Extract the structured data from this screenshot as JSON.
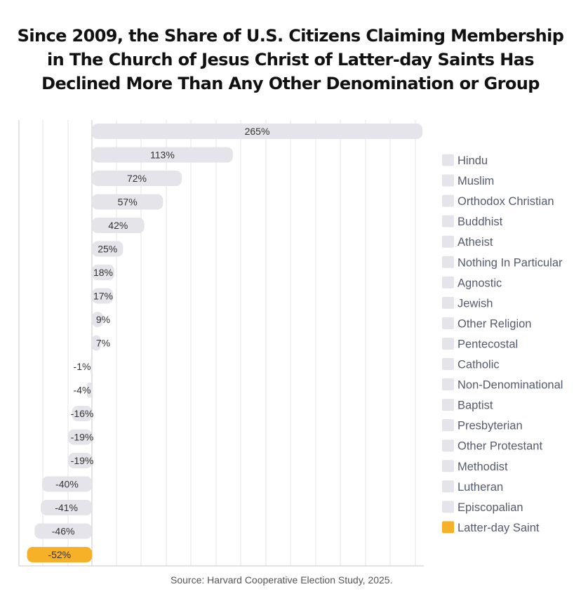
{
  "chart_data": {
    "type": "bar",
    "orientation": "horizontal",
    "title_lines": [
      "Since 2009, the Share of U.S. Citizens Claiming Membership",
      "in The Church of Jesus Christ of Latter-day Saints Has",
      "Declined More Than Any Other Denomination or Group"
    ],
    "categories": [
      "Hindu",
      "Muslim",
      "Orthodox Christian",
      "Buddhist",
      "Atheist",
      "Nothing In Particular",
      "Agnostic",
      "Jewish",
      "Other Religion",
      "Pentecostal",
      "Catholic",
      "Non-Denominational",
      "Baptist",
      "Presbyterian",
      "Other Protestant",
      "Methodist",
      "Lutheran",
      "Episcopalian",
      "Latter-day Saint"
    ],
    "values": [
      265,
      113,
      72,
      57,
      42,
      25,
      18,
      17,
      9,
      7,
      -1,
      -4,
      -16,
      -19,
      -19,
      -40,
      -41,
      -46,
      -52
    ],
    "value_labels": [
      "265%",
      "113%",
      "72%",
      "57%",
      "42%",
      "25%",
      "18%",
      "17%",
      "9%",
      "7%",
      "-1%",
      "-4%",
      "-16%",
      "-19%",
      "-19%",
      "-40%",
      "-41%",
      "-46%",
      "-52%"
    ],
    "highlight_category": "Latter-day Saint",
    "xlim": [
      -57,
      265
    ],
    "grid": true,
    "legend_position": "right",
    "source": "Source:  Harvard Cooperative Election Study, 2025."
  },
  "colors": {
    "bar_default": "#e5e4ea",
    "bar_highlight": "#f7b128",
    "legend_default": "#e5e4ea",
    "legend_highlight": "#f7b128",
    "grid": "#e4e4e4",
    "axis": "#c8c8c8",
    "label_text": "#333333",
    "legend_text": "#555b6e"
  }
}
